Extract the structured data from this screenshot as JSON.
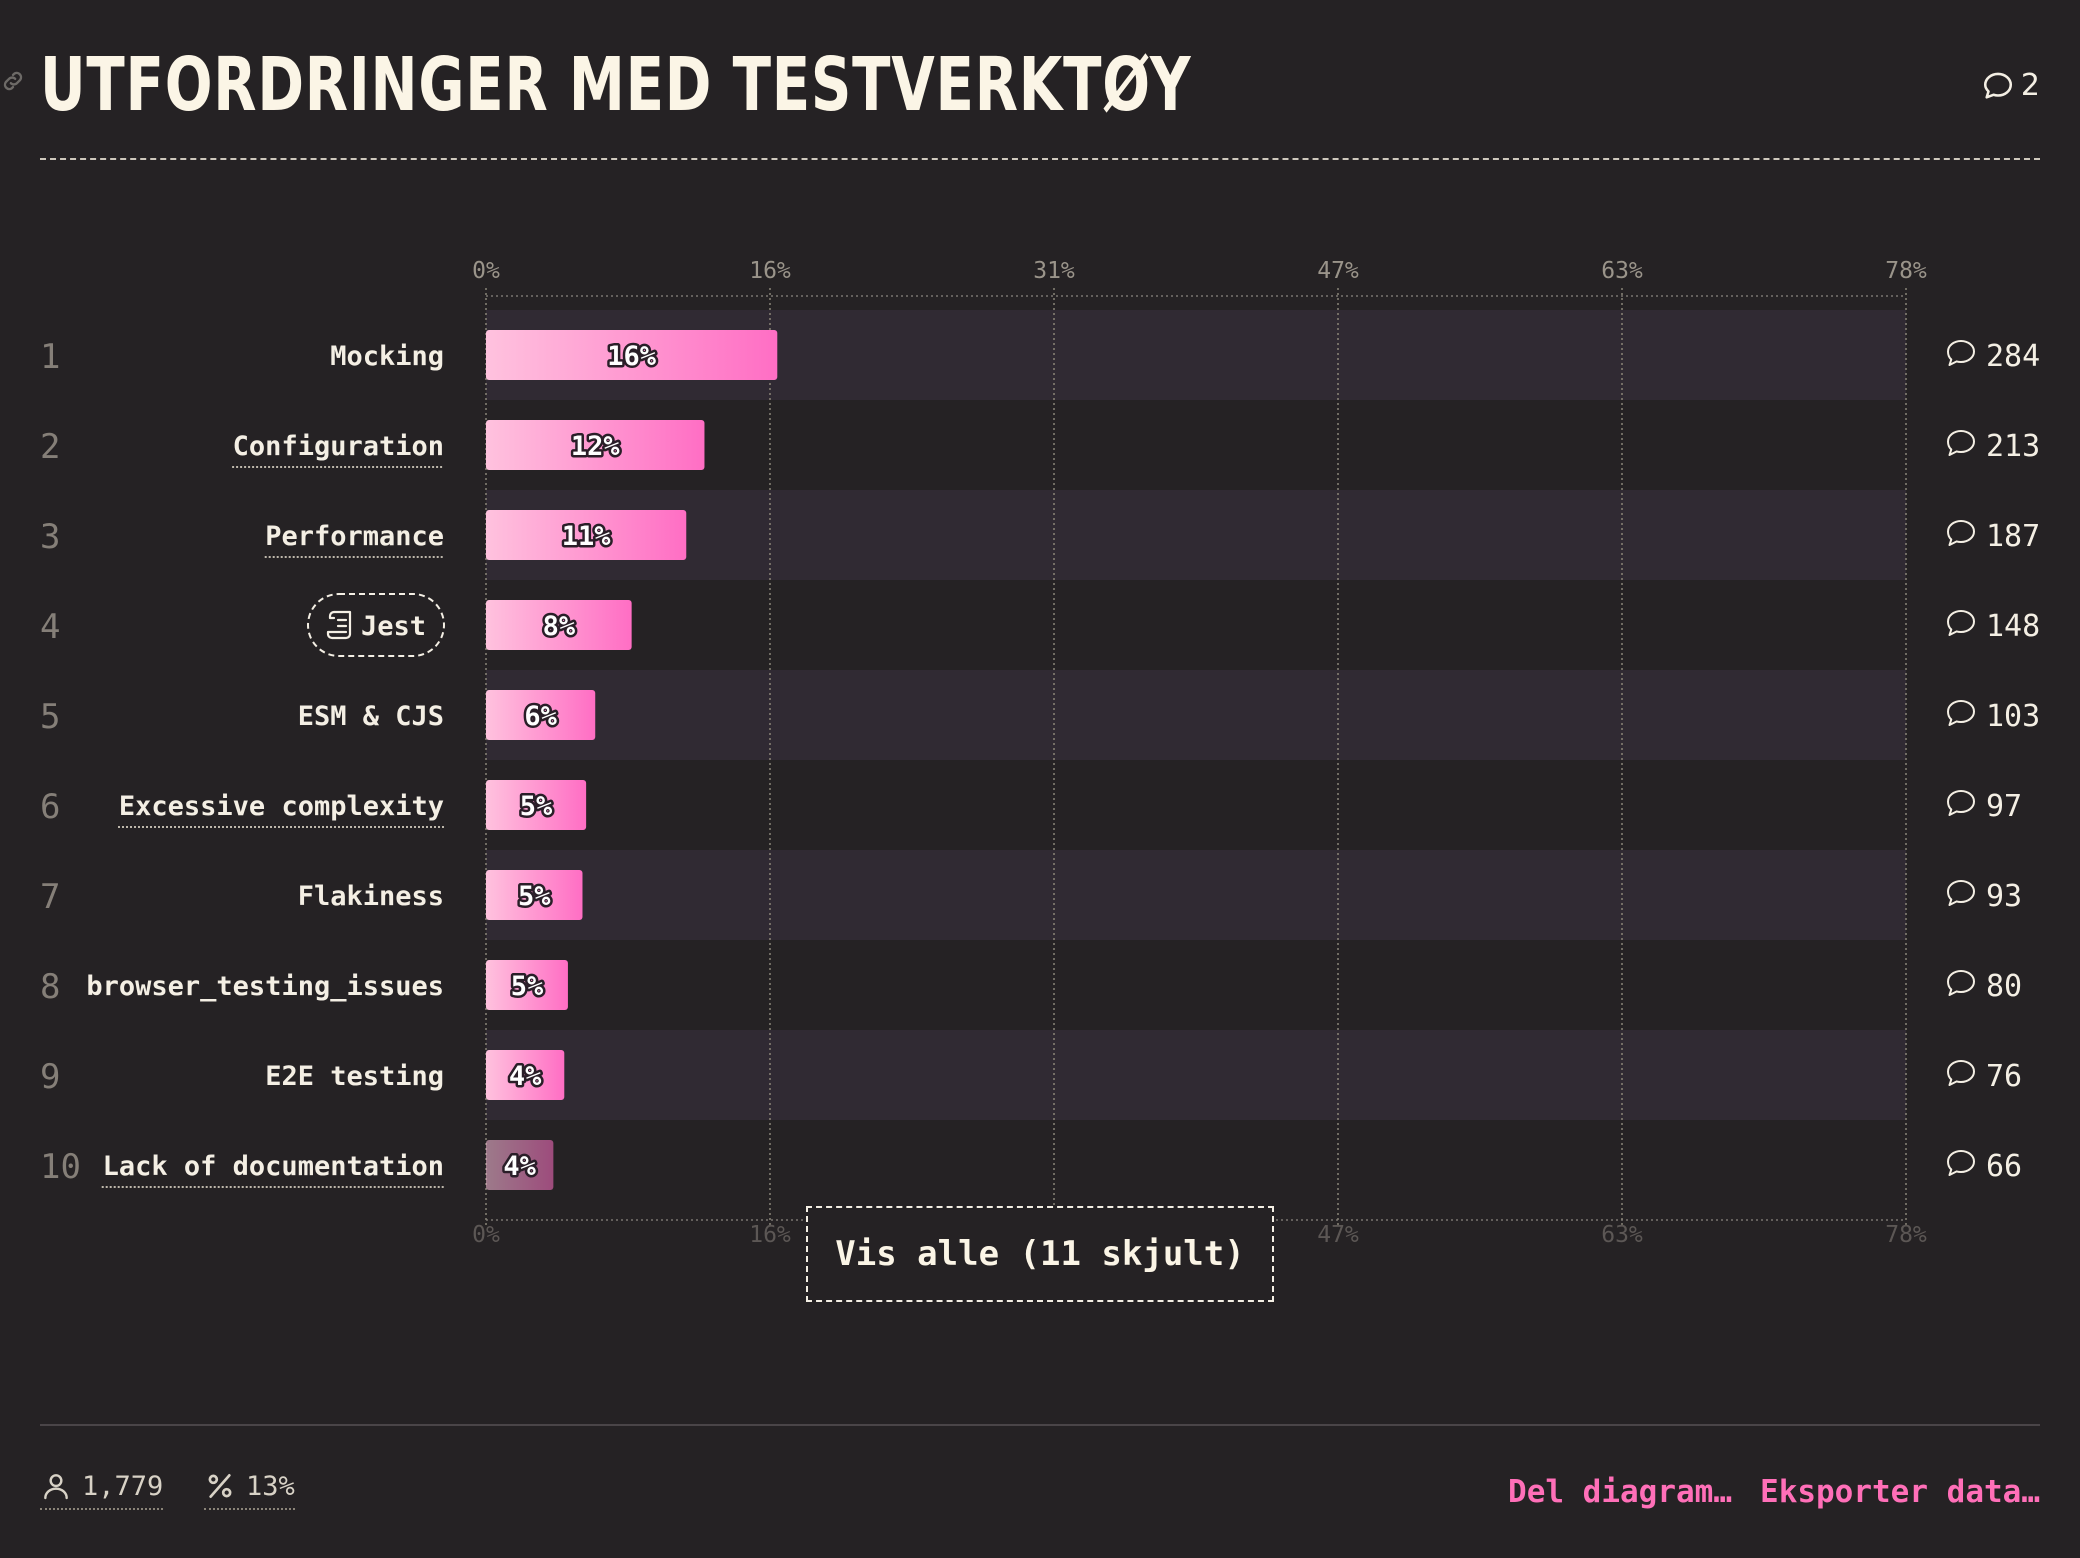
{
  "header": {
    "title": "UTFORDRINGER MED TESTVERKTØY",
    "comment_count": "2"
  },
  "chart_data": {
    "type": "bar",
    "orientation": "horizontal",
    "xlim": [
      0,
      78
    ],
    "ticks": [
      "0%",
      "16%",
      "31%",
      "47%",
      "63%",
      "78%"
    ],
    "tick_values": [
      0,
      15.6,
      31.2,
      46.8,
      62.4,
      78
    ],
    "grid": true,
    "rows": [
      {
        "rank": "1",
        "label": "Mocking",
        "value": 16,
        "value_label": "16%",
        "comments": "284",
        "underlined": false,
        "badge": false
      },
      {
        "rank": "2",
        "label": "Configuration",
        "value": 12,
        "value_label": "12%",
        "comments": "213",
        "underlined": true,
        "badge": false
      },
      {
        "rank": "3",
        "label": "Performance",
        "value": 11,
        "value_label": "11%",
        "comments": "187",
        "underlined": true,
        "badge": false
      },
      {
        "rank": "4",
        "label": "Jest",
        "value": 8,
        "value_label": "8%",
        "comments": "148",
        "underlined": false,
        "badge": true
      },
      {
        "rank": "5",
        "label": "ESM & CJS",
        "value": 6,
        "value_label": "6%",
        "comments": "103",
        "underlined": false,
        "badge": false
      },
      {
        "rank": "6",
        "label": "Excessive complexity",
        "value": 5.5,
        "value_label": "5%",
        "comments": "97",
        "underlined": true,
        "badge": false
      },
      {
        "rank": "7",
        "label": "Flakiness",
        "value": 5.3,
        "value_label": "5%",
        "comments": "93",
        "underlined": false,
        "badge": false
      },
      {
        "rank": "8",
        "label": "browser_testing_issues",
        "value": 4.5,
        "value_label": "5%",
        "comments": "80",
        "underlined": false,
        "badge": false
      },
      {
        "rank": "9",
        "label": "E2E testing",
        "value": 4.3,
        "value_label": "4%",
        "comments": "76",
        "underlined": false,
        "badge": false
      },
      {
        "rank": "10",
        "label": "Lack of documentation",
        "value": 3.7,
        "value_label": "4%",
        "comments": "66",
        "underlined": true,
        "badge": false,
        "faded": true
      }
    ]
  },
  "show_all_label": "Vis alle (11 skjult)",
  "footer": {
    "respondents": "1,779",
    "percent": "13%",
    "share_label": "Del diagram…",
    "export_label": "Eksporter data…"
  },
  "colors": {
    "background": "#252224",
    "stripe": "#302a33",
    "bar_start": "#ffc2de",
    "bar_end": "#ff6ec4",
    "accent": "#ff6fb8",
    "text": "#f4efe4"
  },
  "icons": [
    "link-icon",
    "comment-icon",
    "scroll-icon",
    "user-icon",
    "percent-icon"
  ]
}
